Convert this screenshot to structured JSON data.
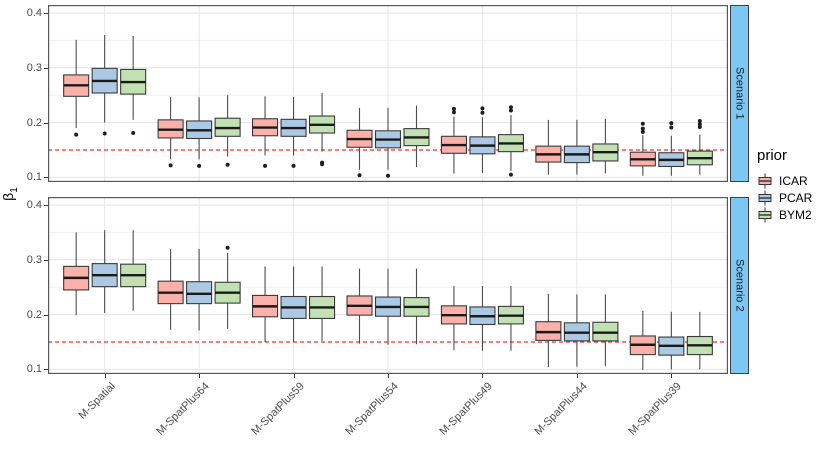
{
  "chart_data": {
    "type": "boxplot",
    "ylabel_base": "β",
    "ylabel_sub": "1",
    "y_ticks": [
      0.4,
      0.3,
      0.2,
      0.1
    ],
    "ylim": [
      0.085,
      0.415
    ],
    "reference_line": 0.15,
    "grid": "on",
    "legend_position": "right",
    "categories": [
      "M-Spatial",
      "M-SpatPlus64",
      "M-SpatPlus59",
      "M-SpatPlus54",
      "M-SpatPlus49",
      "M-SpatPlus44",
      "M-SpatPlus39"
    ],
    "legend": {
      "title": "prior",
      "entries": [
        {
          "label": "ICAR",
          "fill": "#FBB1A9"
        },
        {
          "label": "PCAR",
          "fill": "#ABC9E4"
        },
        {
          "label": "BYM2",
          "fill": "#C2E1B2"
        }
      ]
    },
    "colors": {
      "strip_bg": "#7CC7F3",
      "ref_line": "#FF2A1F",
      "box_stroke": "#3a3a3a",
      "whisker": "#4d4d4d",
      "median": "#1a1a1a",
      "outlier": "#1f1f1f"
    },
    "facets": [
      {
        "label": "Scenario 1",
        "groups": [
          {
            "category": "M-Spatial",
            "boxes": [
              {
                "prior": "ICAR",
                "low": 0.19,
                "q1": 0.248,
                "median": 0.268,
                "q3": 0.287,
                "high": 0.351,
                "outliers": [
                  0.178
                ]
              },
              {
                "prior": "PCAR",
                "low": 0.2,
                "q1": 0.254,
                "median": 0.276,
                "q3": 0.299,
                "high": 0.36,
                "outliers": [
                  0.18
                ]
              },
              {
                "prior": "BYM2",
                "low": 0.205,
                "q1": 0.252,
                "median": 0.274,
                "q3": 0.297,
                "high": 0.358,
                "outliers": [
                  0.181
                ]
              }
            ]
          },
          {
            "category": "M-SpatPlus64",
            "boxes": [
              {
                "prior": "ICAR",
                "low": 0.133,
                "q1": 0.172,
                "median": 0.187,
                "q3": 0.205,
                "high": 0.247,
                "outliers": [
                  0.122
                ]
              },
              {
                "prior": "PCAR",
                "low": 0.133,
                "q1": 0.171,
                "median": 0.186,
                "q3": 0.203,
                "high": 0.246,
                "outliers": [
                  0.121
                ]
              },
              {
                "prior": "BYM2",
                "low": 0.138,
                "q1": 0.175,
                "median": 0.19,
                "q3": 0.208,
                "high": 0.25,
                "outliers": [
                  0.123
                ]
              }
            ]
          },
          {
            "category": "M-SpatPlus59",
            "boxes": [
              {
                "prior": "ICAR",
                "low": 0.14,
                "q1": 0.176,
                "median": 0.191,
                "q3": 0.207,
                "high": 0.248,
                "outliers": [
                  0.121
                ]
              },
              {
                "prior": "PCAR",
                "low": 0.14,
                "q1": 0.175,
                "median": 0.19,
                "q3": 0.206,
                "high": 0.247,
                "outliers": [
                  0.121
                ]
              },
              {
                "prior": "BYM2",
                "low": 0.147,
                "q1": 0.181,
                "median": 0.196,
                "q3": 0.212,
                "high": 0.254,
                "outliers": [
                  0.127,
                  0.124
                ]
              }
            ]
          },
          {
            "category": "M-SpatPlus54",
            "boxes": [
              {
                "prior": "ICAR",
                "low": 0.114,
                "q1": 0.155,
                "median": 0.17,
                "q3": 0.186,
                "high": 0.227,
                "outliers": [
                  0.104
                ]
              },
              {
                "prior": "PCAR",
                "low": 0.114,
                "q1": 0.154,
                "median": 0.169,
                "q3": 0.185,
                "high": 0.227,
                "outliers": [
                  0.103
                ]
              },
              {
                "prior": "BYM2",
                "low": 0.119,
                "q1": 0.158,
                "median": 0.173,
                "q3": 0.189,
                "high": 0.231,
                "outliers": []
              }
            ]
          },
          {
            "category": "M-SpatPlus49",
            "boxes": [
              {
                "prior": "ICAR",
                "low": 0.107,
                "q1": 0.144,
                "median": 0.159,
                "q3": 0.175,
                "high": 0.211,
                "outliers": [
                  0.225,
                  0.219
                ]
              },
              {
                "prior": "PCAR",
                "low": 0.108,
                "q1": 0.143,
                "median": 0.158,
                "q3": 0.174,
                "high": 0.21,
                "outliers": [
                  0.226,
                  0.218
                ]
              },
              {
                "prior": "BYM2",
                "low": 0.112,
                "q1": 0.147,
                "median": 0.162,
                "q3": 0.178,
                "high": 0.214,
                "outliers": [
                  0.228,
                  0.222,
                  0.105
                ]
              }
            ]
          },
          {
            "category": "M-SpatPlus44",
            "boxes": [
              {
                "prior": "ICAR",
                "low": 0.105,
                "q1": 0.128,
                "median": 0.142,
                "q3": 0.157,
                "high": 0.205,
                "outliers": []
              },
              {
                "prior": "PCAR",
                "low": 0.105,
                "q1": 0.127,
                "median": 0.142,
                "q3": 0.157,
                "high": 0.205,
                "outliers": []
              },
              {
                "prior": "BYM2",
                "low": 0.107,
                "q1": 0.13,
                "median": 0.146,
                "q3": 0.161,
                "high": 0.207,
                "outliers": []
              }
            ]
          },
          {
            "category": "M-SpatPlus39",
            "boxes": [
              {
                "prior": "ICAR",
                "low": 0.103,
                "q1": 0.121,
                "median": 0.133,
                "q3": 0.146,
                "high": 0.177,
                "outliers": [
                  0.198,
                  0.189,
                  0.183
                ]
              },
              {
                "prior": "PCAR",
                "low": 0.103,
                "q1": 0.12,
                "median": 0.132,
                "q3": 0.145,
                "high": 0.176,
                "outliers": [
                  0.199,
                  0.191
                ]
              },
              {
                "prior": "BYM2",
                "low": 0.105,
                "q1": 0.123,
                "median": 0.135,
                "q3": 0.148,
                "high": 0.178,
                "outliers": [
                  0.203,
                  0.197,
                  0.192
                ]
              }
            ]
          }
        ]
      },
      {
        "label": "Scenario 2",
        "groups": [
          {
            "category": "M-Spatial",
            "boxes": [
              {
                "prior": "ICAR",
                "low": 0.199,
                "q1": 0.245,
                "median": 0.267,
                "q3": 0.288,
                "high": 0.35,
                "outliers": []
              },
              {
                "prior": "PCAR",
                "low": 0.203,
                "q1": 0.251,
                "median": 0.272,
                "q3": 0.293,
                "high": 0.354,
                "outliers": []
              },
              {
                "prior": "BYM2",
                "low": 0.207,
                "q1": 0.251,
                "median": 0.272,
                "q3": 0.292,
                "high": 0.354,
                "outliers": []
              }
            ]
          },
          {
            "category": "M-SpatPlus64",
            "boxes": [
              {
                "prior": "ICAR",
                "low": 0.172,
                "q1": 0.22,
                "median": 0.24,
                "q3": 0.261,
                "high": 0.32,
                "outliers": []
              },
              {
                "prior": "PCAR",
                "low": 0.171,
                "q1": 0.22,
                "median": 0.238,
                "q3": 0.26,
                "high": 0.32,
                "outliers": []
              },
              {
                "prior": "BYM2",
                "low": 0.174,
                "q1": 0.221,
                "median": 0.24,
                "q3": 0.259,
                "high": 0.313,
                "outliers": [
                  0.322
                ]
              }
            ]
          },
          {
            "category": "M-SpatPlus59",
            "boxes": [
              {
                "prior": "ICAR",
                "low": 0.15,
                "q1": 0.196,
                "median": 0.215,
                "q3": 0.235,
                "high": 0.288,
                "outliers": []
              },
              {
                "prior": "PCAR",
                "low": 0.15,
                "q1": 0.193,
                "median": 0.213,
                "q3": 0.233,
                "high": 0.288,
                "outliers": []
              },
              {
                "prior": "BYM2",
                "low": 0.152,
                "q1": 0.193,
                "median": 0.213,
                "q3": 0.233,
                "high": 0.288,
                "outliers": []
              }
            ]
          },
          {
            "category": "M-SpatPlus54",
            "boxes": [
              {
                "prior": "ICAR",
                "low": 0.147,
                "q1": 0.199,
                "median": 0.216,
                "q3": 0.234,
                "high": 0.284,
                "outliers": []
              },
              {
                "prior": "PCAR",
                "low": 0.145,
                "q1": 0.197,
                "median": 0.214,
                "q3": 0.232,
                "high": 0.284,
                "outliers": []
              },
              {
                "prior": "BYM2",
                "low": 0.146,
                "q1": 0.197,
                "median": 0.214,
                "q3": 0.231,
                "high": 0.284,
                "outliers": []
              }
            ]
          },
          {
            "category": "M-SpatPlus49",
            "boxes": [
              {
                "prior": "ICAR",
                "low": 0.135,
                "q1": 0.183,
                "median": 0.199,
                "q3": 0.216,
                "high": 0.252,
                "outliers": []
              },
              {
                "prior": "PCAR",
                "low": 0.134,
                "q1": 0.182,
                "median": 0.197,
                "q3": 0.214,
                "high": 0.252,
                "outliers": []
              },
              {
                "prior": "BYM2",
                "low": 0.134,
                "q1": 0.183,
                "median": 0.198,
                "q3": 0.215,
                "high": 0.252,
                "outliers": []
              }
            ]
          },
          {
            "category": "M-SpatPlus44",
            "boxes": [
              {
                "prior": "ICAR",
                "low": 0.104,
                "q1": 0.153,
                "median": 0.168,
                "q3": 0.187,
                "high": 0.238,
                "outliers": []
              },
              {
                "prior": "PCAR",
                "low": 0.105,
                "q1": 0.152,
                "median": 0.167,
                "q3": 0.185,
                "high": 0.237,
                "outliers": []
              },
              {
                "prior": "BYM2",
                "low": 0.106,
                "q1": 0.152,
                "median": 0.167,
                "q3": 0.186,
                "high": 0.237,
                "outliers": []
              }
            ]
          },
          {
            "category": "M-SpatPlus39",
            "boxes": [
              {
                "prior": "ICAR",
                "low": 0.099,
                "q1": 0.127,
                "median": 0.145,
                "q3": 0.161,
                "high": 0.207,
                "outliers": []
              },
              {
                "prior": "PCAR",
                "low": 0.1,
                "q1": 0.126,
                "median": 0.143,
                "q3": 0.159,
                "high": 0.205,
                "outliers": []
              },
              {
                "prior": "BYM2",
                "low": 0.1,
                "q1": 0.127,
                "median": 0.144,
                "q3": 0.16,
                "high": 0.205,
                "outliers": []
              }
            ]
          }
        ]
      }
    ]
  }
}
